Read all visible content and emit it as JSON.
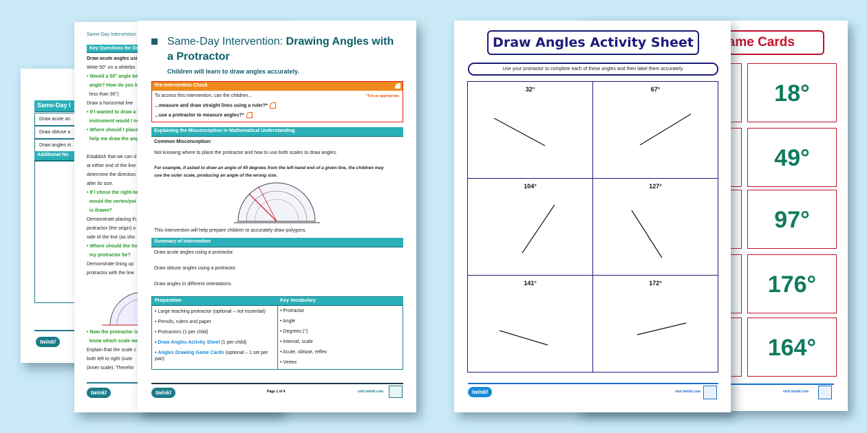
{
  "back_page": {
    "table_header": "Same-Day I",
    "rows": [
      "Draw acute an",
      "Draw obtuse a",
      "Draw angles in"
    ],
    "notes_header": "Additional No",
    "logo": "twinkl"
  },
  "middle_page": {
    "running_title": "Same-Day Intervention",
    "key_questions_header": "Key Questions for De",
    "lines": [
      {
        "text": "Draw acute angles usi",
        "style": "bold"
      },
      {
        "text": "Write 50° on a whitebo",
        "style": "normal"
      },
      {
        "text": "• Would a 50° angle be",
        "style": "green"
      },
      {
        "text": "  angle? How do you k",
        "style": "green"
      },
      {
        "text": "  less than 90°)",
        "style": "normal"
      },
      {
        "text": "Draw a horizontal line",
        "style": "normal"
      },
      {
        "text": "• If I wanted to draw a 5",
        "style": "green"
      },
      {
        "text": "  instrument would I ne",
        "style": "green"
      },
      {
        "text": "• Where should I place",
        "style": "green"
      },
      {
        "text": "  help me draw the ang",
        "style": "green"
      },
      {
        "text": "",
        "style": "normal"
      },
      {
        "text": "Establish that we can d",
        "style": "normal"
      },
      {
        "text": "at either end of the line",
        "style": "normal"
      },
      {
        "text": "determine the direction",
        "style": "normal"
      },
      {
        "text": "alter its size.",
        "style": "normal"
      },
      {
        "text": "• If I chose the right-ha",
        "style": "green"
      },
      {
        "text": "  would the vertex/poi",
        "style": "green"
      },
      {
        "text": "  is drawn?",
        "style": "green"
      },
      {
        "text": "Demonstrate placing th",
        "style": "normal"
      },
      {
        "text": "protractor (the origin) o",
        "style": "normal"
      },
      {
        "text": "side of the line (as sho",
        "style": "normal"
      },
      {
        "text": "• Where should the hor",
        "style": "green"
      },
      {
        "text": "  my protractor be?",
        "style": "green"
      },
      {
        "text": "Demonstrate lining up",
        "style": "normal"
      },
      {
        "text": "protractor with the line",
        "style": "normal"
      }
    ],
    "bottom_lines": [
      {
        "text": "• Now the protractor is",
        "style": "green"
      },
      {
        "text": "  know which scale we",
        "style": "green"
      },
      {
        "text": "Explain that the scale c",
        "style": "normal"
      },
      {
        "text": "both left to right (oute",
        "style": "normal"
      },
      {
        "text": "(inner scale). Therefor",
        "style": "normal"
      }
    ],
    "logo": "twinkl"
  },
  "front_page": {
    "title_prefix": "Same-Day Intervention: ",
    "title_main": "Drawing Angles with a Protractor",
    "subtitle": "Children will learn to draw angles accurately.",
    "pre_check": {
      "header": "Pre-Intervention Check",
      "intro": "To access this intervention, can the children...",
      "note": "*Tick as appropriate.",
      "items": [
        "...measure and draw straight lines using a ruler?*",
        "...use a protractor to measure angles?*"
      ]
    },
    "misconception": {
      "header": "Explaining the Misconception in Mathematical Understanding",
      "label": "Common Misconception:",
      "text": "Not knowing where to place the protractor and how to use both scales to draw angles.",
      "example_1": "For example, if asked to draw an angle of 45 degrees from the left-hand end of a given line, the children may",
      "example_2": "use the outer scale, producing an angle of the wrong size.",
      "after": "This intervention will help prepare children to accurately draw polygons."
    },
    "summary": {
      "header": "Summary of Intervention",
      "items": [
        "Draw acute angles using a protractor.",
        "Draw obtuse angles using a protractor.",
        "Draw angles in different orientations."
      ]
    },
    "preparation": {
      "header": "Preparation",
      "items": [
        {
          "text": "Large teaching protractor (optional – not essential)"
        },
        {
          "text": "Pencils, rulers and paper"
        },
        {
          "text": "Protractors (1 per child)"
        },
        {
          "link": "Draw Angles Activity Sheet",
          "text": " (1 per child)"
        },
        {
          "link": "Angles Drawing Game Cards",
          "text": " (optional – 1 set per pair)"
        }
      ]
    },
    "vocabulary": {
      "header": "Key Vocabulary",
      "items": [
        "Protractor",
        "Angle",
        "Degrees (°)",
        "Interval, scale",
        "Acute, obtuse, reflex",
        "Vertex"
      ]
    },
    "footer": {
      "logo": "twinkl",
      "page": "Page 1 of 4",
      "site": "visit twinkl.com"
    }
  },
  "game_cards": {
    "title": "Game Cards",
    "cards": [
      "18°",
      "49°",
      "97°",
      "176°",
      "164°"
    ],
    "site": "visit twinkl.com",
    "accent": "#c4102a"
  },
  "activity_sheet": {
    "title": "Draw Angles Activity Sheet",
    "instruction": "Use your protractor to complete each of these angles and then label them accurately.",
    "angles": [
      "32°",
      "67°",
      "104°",
      "127°",
      "141°",
      "172°"
    ],
    "footer": {
      "logo": "twinkl",
      "site": "visit twinkl.com"
    },
    "accent": "#1c1c7a"
  },
  "colors": {
    "background": "#c9e9f6",
    "teal": "#2ab0b8",
    "orange": "#ef8a1f",
    "link": "#1a8ad8",
    "green": "#0f7a5e"
  }
}
